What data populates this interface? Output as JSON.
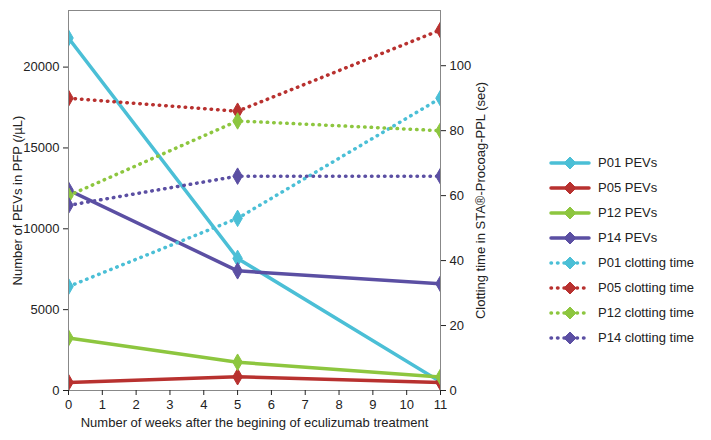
{
  "chart_data": {
    "type": "line",
    "xlabel": "Number of weeks after the begining of eculizumab treatment",
    "ylabel": "Number of PEVs in PFP (/µL)",
    "y2label": "Clotting time in STA®-Procoag-PPL (sec)",
    "x": [
      0,
      5,
      11
    ],
    "xlim": [
      0,
      11
    ],
    "xticks": [
      0,
      1,
      2,
      3,
      4,
      5,
      6,
      7,
      8,
      9,
      10,
      11
    ],
    "ylim": [
      0,
      23500
    ],
    "yticks": [
      0,
      5000,
      10000,
      15000,
      20000
    ],
    "y2lim": [
      0,
      117
    ],
    "y2ticks": [
      0,
      20,
      40,
      60,
      80,
      100
    ],
    "grid": false,
    "legend": "right",
    "series": [
      {
        "name": "P01 PEVs",
        "color": "#4bbfd6",
        "values": [
          21800,
          8170,
          540
        ],
        "marker": "diamond",
        "line_style": "solid"
      },
      {
        "name": "P05 PEVs",
        "color": "#b8312f",
        "values": [
          500,
          850,
          500
        ],
        "marker": "diamond",
        "line_style": "solid"
      },
      {
        "name": "P12 PEVs",
        "color": "#8dc63f",
        "values": [
          3250,
          1750,
          840
        ],
        "marker": "diamond",
        "line_style": "solid"
      },
      {
        "name": "P14 PEVs",
        "color": "#5b4fa3",
        "values": [
          12400,
          7400,
          6600
        ],
        "marker": "diamond",
        "line_style": "solid"
      },
      {
        "name": "P01 clotting time",
        "color": "#4bbfd6",
        "values": [
          32,
          53,
          90
        ],
        "marker": "diamond",
        "line_style": "dotted",
        "axis": "y2"
      },
      {
        "name": "P05 clotting time",
        "color": "#b8312f",
        "values": [
          90,
          86,
          111
        ],
        "marker": "diamond",
        "line_style": "dotted",
        "axis": "y2"
      },
      {
        "name": "P12 clotting time",
        "color": "#8dc63f",
        "values": [
          60,
          83,
          80
        ],
        "marker": "diamond",
        "line_style": "dotted",
        "axis": "y2"
      },
      {
        "name": "P14 clotting time",
        "color": "#5b4fa3",
        "values": [
          57,
          66,
          66
        ],
        "marker": "diamond",
        "line_style": "dotted",
        "axis": "y2"
      }
    ]
  }
}
